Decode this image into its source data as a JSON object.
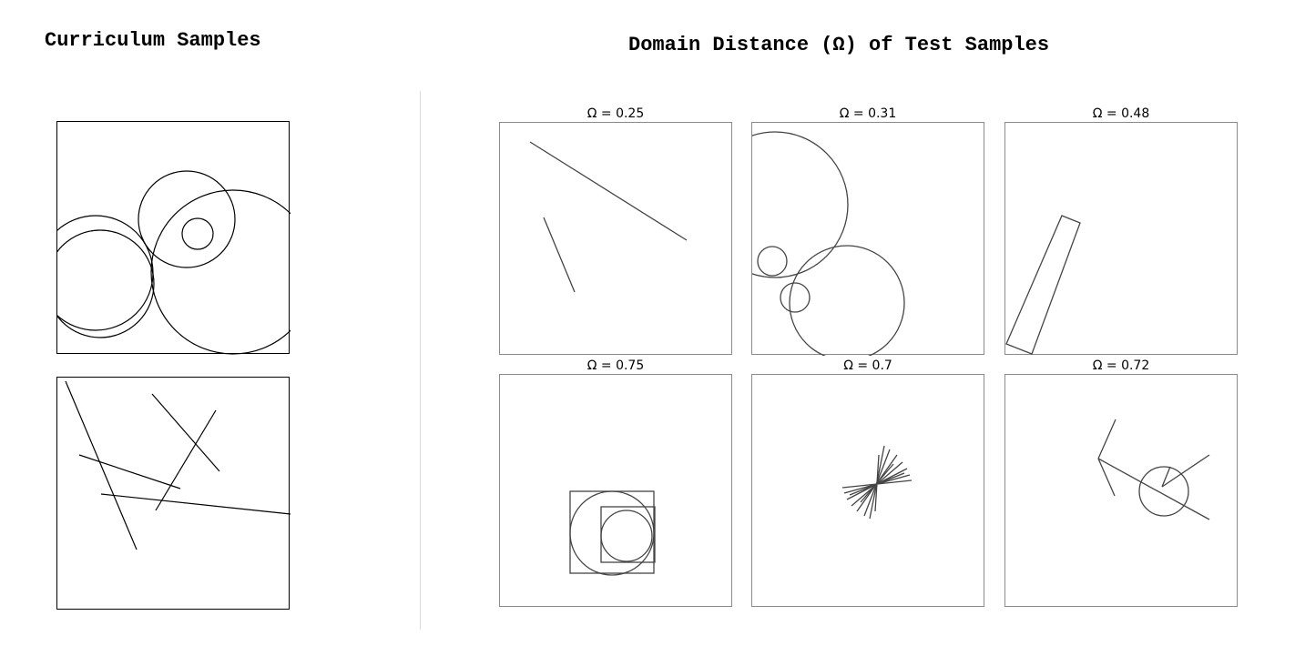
{
  "curriculum": {
    "title": "Curriculum Samples"
  },
  "test": {
    "title": "Domain Distance (Ω) of Test Samples",
    "samples": [
      {
        "label": "Ω = 0.25",
        "omega": 0.25
      },
      {
        "label": "Ω = 0.31",
        "omega": 0.31
      },
      {
        "label": "Ω = 0.48",
        "omega": 0.48
      },
      {
        "label": "Ω = 0.75",
        "omega": 0.75
      },
      {
        "label": "Ω = 0.7",
        "omega": 0.7
      },
      {
        "label": "Ω = 0.72",
        "omega": 0.72
      }
    ]
  },
  "colors": {
    "background": "#ffffff",
    "curriculum_stroke": "#000000",
    "test_stroke": "#444444",
    "test_border": "#8a8a8a",
    "divider": "#dcdcdc"
  }
}
